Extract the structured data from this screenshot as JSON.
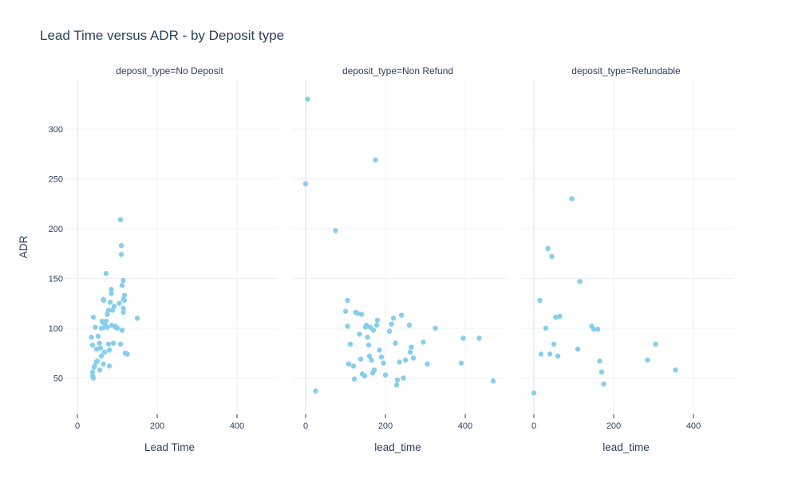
{
  "title": "Lead Time versus ADR - by Deposit type",
  "chart_data": {
    "type": "scatter",
    "title": "Lead Time versus ADR - by Deposit type",
    "ylabel": "ADR",
    "ylim": [
      20,
      345
    ],
    "yticks": [
      50,
      100,
      150,
      200,
      250,
      300
    ],
    "xticks": [
      0,
      200,
      400
    ],
    "xlim": [
      -5,
      505
    ],
    "grid": true,
    "marker_color": "#87ceeb",
    "facets": [
      {
        "name": "deposit_type=No Deposit",
        "xlabel": "Lead Time",
        "x": [
          35,
          38,
          40,
          42,
          38,
          45,
          48,
          50,
          52,
          55,
          58,
          60,
          62,
          63,
          65,
          66,
          67,
          68,
          70,
          72,
          72,
          75,
          75,
          78,
          78,
          80,
          82,
          85,
          85,
          86,
          88,
          90,
          92,
          95,
          96,
          100,
          105,
          108,
          110,
          110,
          112,
          115,
          115,
          115,
          118,
          118,
          120,
          125,
          150,
          38,
          40,
          43,
          47,
          56,
          60,
          65,
          80,
          108,
          112,
          115
        ],
        "y": [
          91,
          83,
          111,
          61,
          56,
          101,
          79,
          67,
          92,
          85,
          80,
          100,
          107,
          106,
          129,
          128,
          101,
          76,
          103,
          107,
          155,
          101,
          114,
          118,
          84,
          62,
          126,
          139,
          135,
          103,
          118,
          85,
          122,
          102,
          101,
          100,
          125,
          209,
          183,
          174,
          143,
          148,
          129,
          116,
          133,
          128,
          75,
          74,
          110,
          52,
          50,
          62,
          66,
          58,
          72,
          64,
          78,
          84,
          98,
          120
        ]
      },
      {
        "name": "deposit_type=Non Refund",
        "xlabel": "lead_time",
        "x": [
          0,
          5,
          25,
          75,
          100,
          105,
          105,
          108,
          112,
          120,
          122,
          125,
          130,
          135,
          138,
          140,
          142,
          148,
          150,
          152,
          155,
          158,
          160,
          162,
          165,
          168,
          170,
          172,
          175,
          178,
          180,
          185,
          190,
          195,
          200,
          210,
          215,
          220,
          225,
          228,
          230,
          235,
          240,
          245,
          250,
          260,
          262,
          265,
          270,
          295,
          305,
          325,
          390,
          395,
          435,
          470
        ],
        "y": [
          245,
          330,
          37,
          198,
          117,
          128,
          102,
          64,
          84,
          62,
          49,
          116,
          115,
          94,
          69,
          114,
          54,
          52,
          101,
          103,
          91,
          83,
          72,
          101,
          68,
          55,
          98,
          58,
          269,
          103,
          108,
          78,
          71,
          65,
          53,
          97,
          104,
          110,
          85,
          43,
          48,
          66,
          113,
          50,
          68,
          103,
          76,
          81,
          70,
          86,
          64,
          100,
          65,
          90,
          90,
          47
        ]
      },
      {
        "name": "deposit_type=Refundable",
        "xlabel": "lead_time",
        "x": [
          0,
          15,
          18,
          30,
          35,
          40,
          45,
          50,
          55,
          60,
          65,
          95,
          110,
          115,
          145,
          150,
          160,
          165,
          170,
          175,
          285,
          305,
          355
        ],
        "y": [
          35,
          128,
          74,
          100,
          180,
          74,
          172,
          84,
          111,
          72,
          112,
          230,
          79,
          147,
          102,
          99,
          99,
          67,
          56,
          44,
          68,
          84,
          58
        ]
      }
    ]
  }
}
